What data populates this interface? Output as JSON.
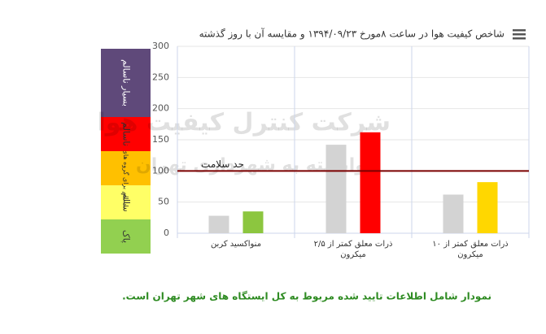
{
  "chart_data": {
    "type": "bar",
    "title": "شاخص کیفیت هوا در ساعت ۸مورخ ۱۳۹۴/۰۹/۲۳ و مقایسه آن با روز گذشته",
    "categories": [
      [
        "منواکسید کربن"
      ],
      [
        "ذرات معلق کمتر از ۲/۵",
        "میکرون"
      ],
      [
        "ذرات معلق کمتر از ۱۰",
        "میکرون"
      ]
    ],
    "series": [
      {
        "colors": [
          "#d3d3d3",
          "#d3d3d3",
          "#d3d3d3"
        ],
        "values": [
          28,
          142,
          62
        ]
      },
      {
        "colors": [
          "#8cc63f",
          "#ff0000",
          "#ffd700"
        ],
        "values": [
          35,
          162,
          82
        ]
      }
    ],
    "ylim": [
      0,
      300
    ],
    "yticks": [
      0,
      50,
      100,
      150,
      200,
      250,
      300
    ],
    "grid": true,
    "threshold": {
      "value": 100,
      "label": "حد سلامت",
      "color": "#7b0000"
    },
    "bands": [
      {
        "from": 0,
        "to": 50,
        "label": "پاک",
        "color": "#92d050"
      },
      {
        "from": 50,
        "to": 100,
        "label": "سالم",
        "color": "#ffff66"
      },
      {
        "from": 100,
        "to": 150,
        "label": "ناسالم برای گروه های حساس",
        "color": "#ffc000"
      },
      {
        "from": 150,
        "to": 200,
        "label": "ناسالم",
        "color": "#ff0000"
      },
      {
        "from": 200,
        "to": 300,
        "label": "بسیار ناسالم",
        "color": "#5f497a"
      }
    ],
    "watermark": [
      "شرکت کنترل کیفیت هوا",
      "وابسته به شهرداری تهران"
    ],
    "note": "نمودار شامل اطلاعات تایید شده مربوط به کل ایستگاه های شهر تهران است."
  }
}
